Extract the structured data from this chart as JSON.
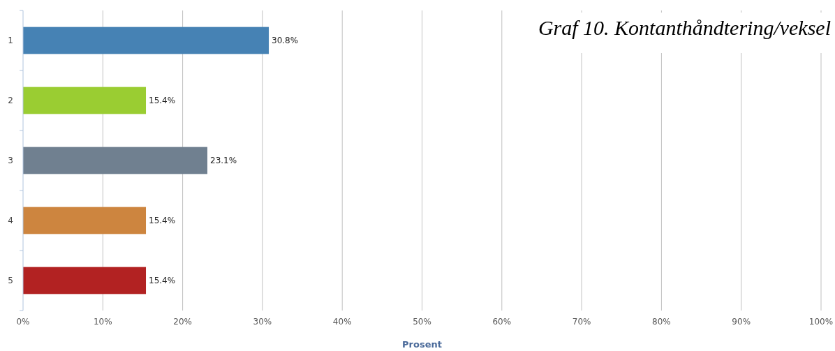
{
  "chart_data": {
    "type": "bar",
    "orientation": "horizontal",
    "title": "Graf 10. Kontanthåndtering/veksel",
    "xlabel": "Prosent",
    "categories": [
      "1",
      "2",
      "3",
      "4",
      "5"
    ],
    "values": [
      30.8,
      15.4,
      23.1,
      15.4,
      15.4
    ],
    "colors": [
      "#4682b4",
      "#9acd32",
      "#708090",
      "#cd853f",
      "#b22222"
    ],
    "value_labels": [
      "30.8%",
      "15.4%",
      "23.1%",
      "15.4%",
      "15.4%"
    ],
    "xlim": [
      0,
      100
    ],
    "xticks": [
      {
        "value": 0,
        "label": "0%"
      },
      {
        "value": 10,
        "label": "10%"
      },
      {
        "value": 20,
        "label": "20%"
      },
      {
        "value": 30,
        "label": "30%"
      },
      {
        "value": 40,
        "label": "40%"
      },
      {
        "value": 50,
        "label": "50%"
      },
      {
        "value": 60,
        "label": "60%"
      },
      {
        "value": 70,
        "label": "70%"
      },
      {
        "value": 80,
        "label": "80%"
      },
      {
        "value": 90,
        "label": "90%"
      },
      {
        "value": 100,
        "label": "100%"
      }
    ],
    "grid": "x"
  }
}
